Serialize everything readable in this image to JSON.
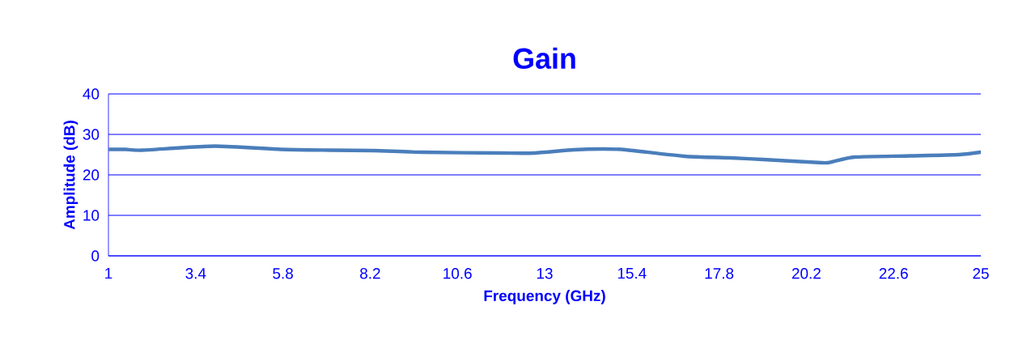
{
  "chart_data": {
    "type": "line",
    "title": "Gain",
    "xlabel": "Frequency (GHz)",
    "ylabel": "Amplitude (dB)",
    "x": [
      1,
      1.47,
      1.92,
      3.92,
      5.74,
      7.1,
      8.28,
      9.64,
      11.82,
      12.71,
      13.8,
      14.6,
      15.23,
      16.85,
      18.12,
      19.01,
      20.63,
      20.9,
      21.53,
      23.06,
      24.4,
      25
    ],
    "series": [
      {
        "color": "#4a7ebb",
        "values": [
          26.3,
          26.3,
          26.1,
          27.1,
          26.3,
          26.1,
          26.0,
          25.6,
          25.4,
          25.4,
          26.2,
          26.4,
          26.2,
          24.6,
          24.2,
          23.8,
          23.0,
          23.2,
          24.4,
          24.7,
          25.0,
          25.6
        ]
      }
    ],
    "xlim": [
      1,
      25
    ],
    "ylim": [
      0,
      40
    ],
    "xticks": [
      1,
      3.4,
      5.8,
      8.2,
      10.6,
      13,
      15.4,
      17.8,
      20.2,
      22.6,
      25
    ],
    "yticks": [
      0,
      10,
      20,
      30,
      40
    ],
    "grid": "y",
    "marker": "none",
    "line_style": "solid"
  }
}
